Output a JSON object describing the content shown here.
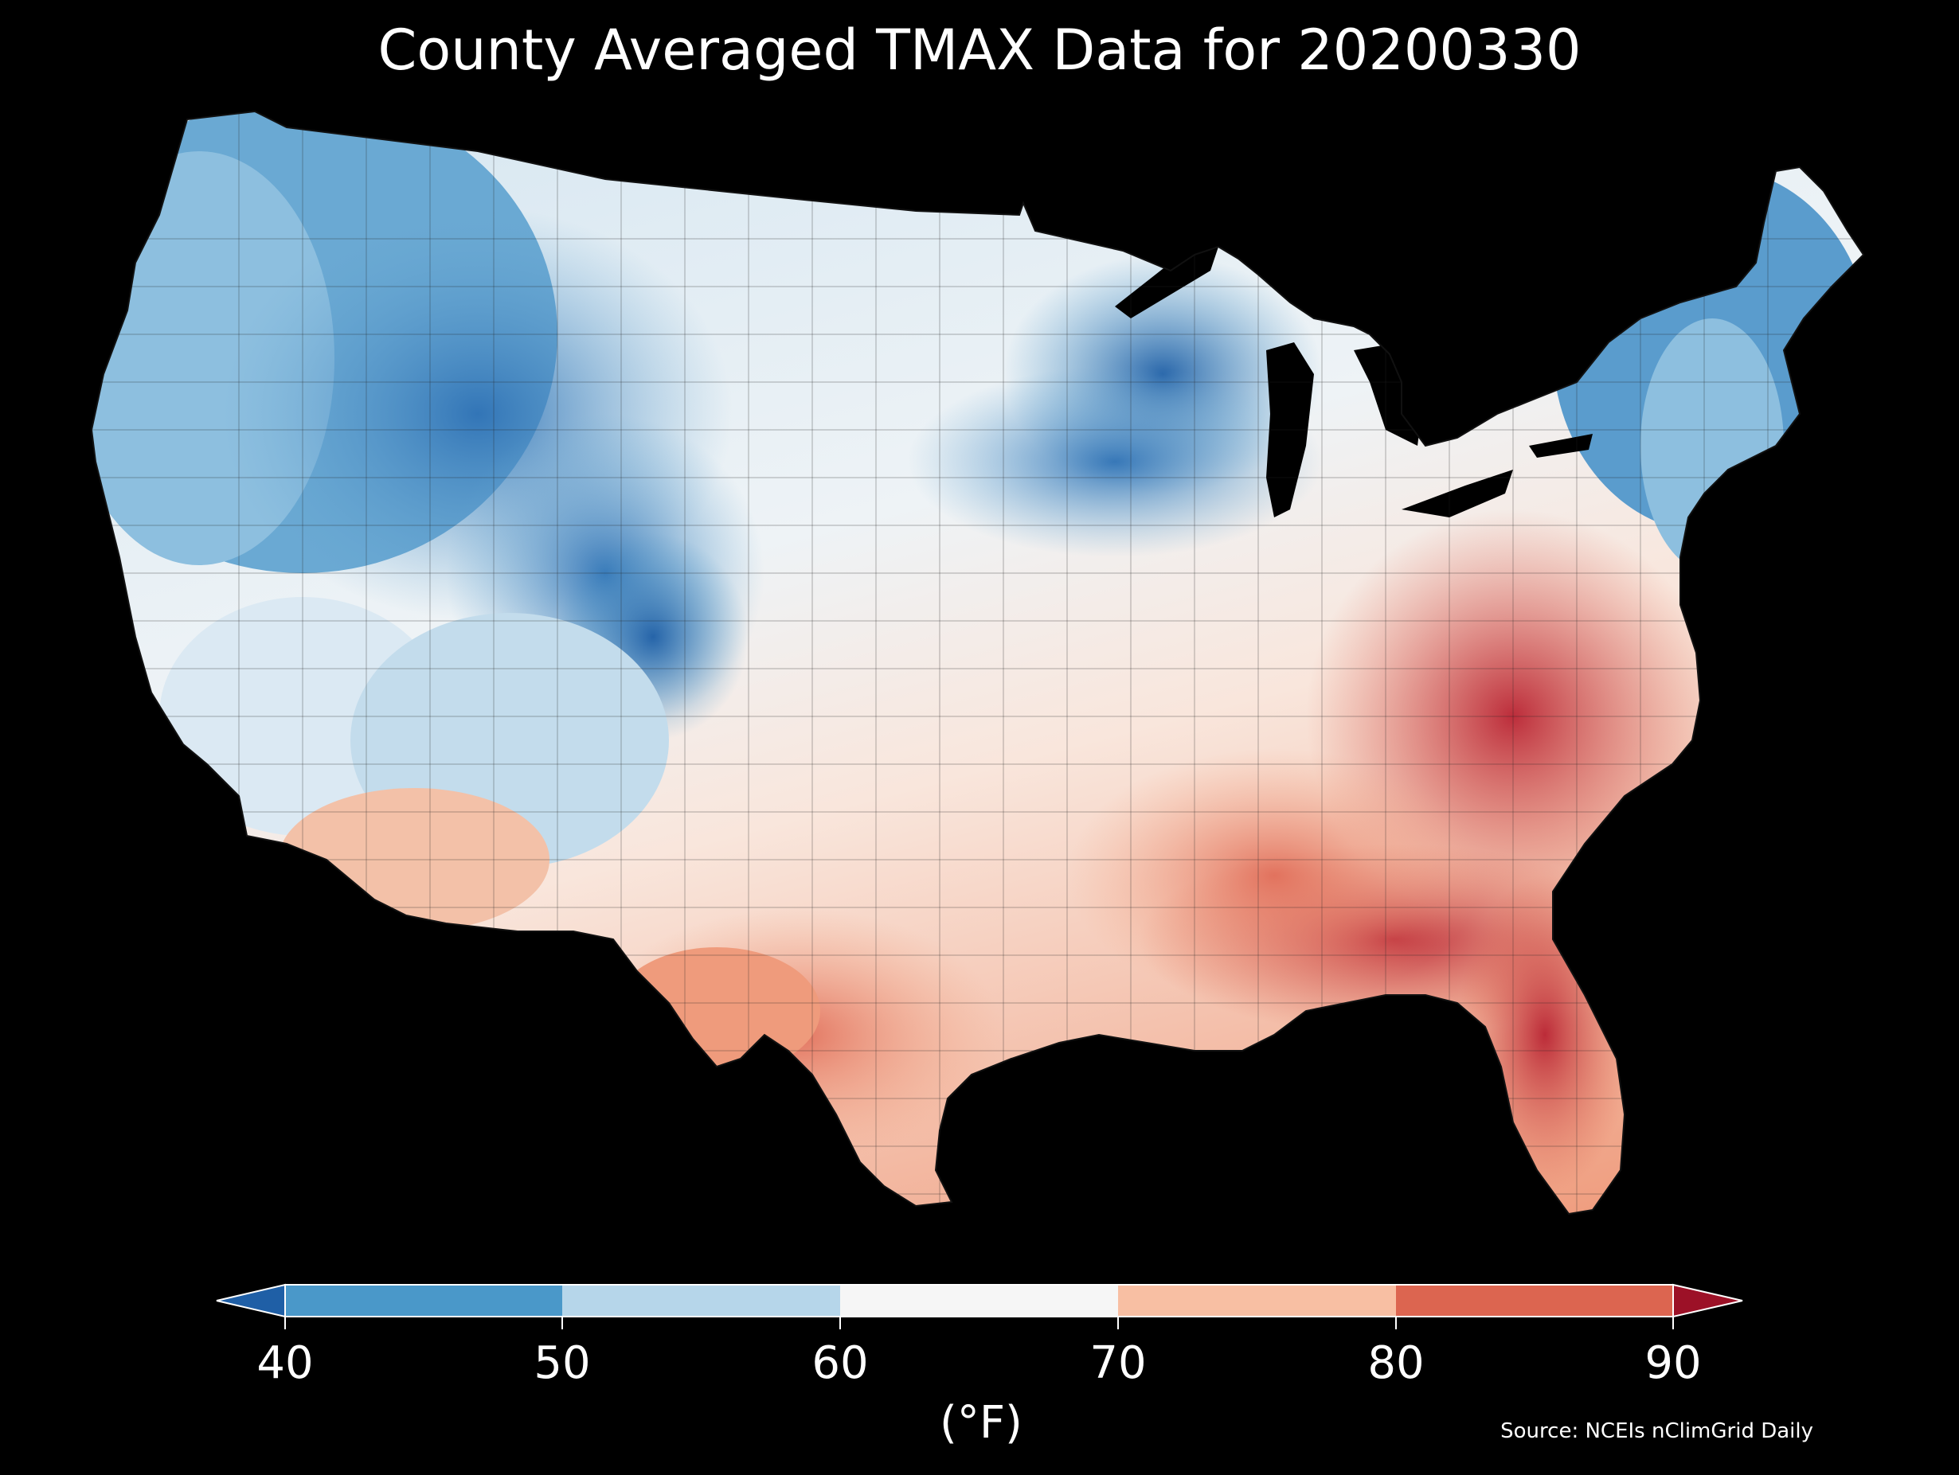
{
  "title": "County Averaged TMAX Data for 20200330",
  "legend": {
    "unit_label": "(°F)",
    "ticks": [
      "40",
      "50",
      "60",
      "70",
      "80",
      "90"
    ],
    "bins": [
      {
        "range": "<40",
        "color": "#1f5fa6"
      },
      {
        "range": "40-50",
        "color": "#4a98c9"
      },
      {
        "range": "50-60",
        "color": "#b6d6ea"
      },
      {
        "range": "60-70",
        "color": "#f6f6f6"
      },
      {
        "range": "70-80",
        "color": "#f8bfa3"
      },
      {
        "range": "80-90",
        "color": "#dc6550"
      },
      {
        "range": ">90",
        "color": "#9c1127"
      }
    ]
  },
  "source": "Source: NCEIs nClimGrid Daily",
  "map_regions": [
    {
      "region": "northern-plains-upper-midwest",
      "color": "#e4eef5"
    },
    {
      "region": "pacific-northwest-northern-rockies",
      "color": "#6aa9d3"
    },
    {
      "region": "central-rockies-colorado",
      "color": "#3a7fbf"
    },
    {
      "region": "great-lakes-wisconsin",
      "color": "#2f72b5"
    },
    {
      "region": "northeast-new-england",
      "color": "#5a9ccd"
    },
    {
      "region": "southwest-arizona",
      "color": "#f5c6ae"
    },
    {
      "region": "texas-gulf",
      "color": "#ea8d6c"
    },
    {
      "region": "southeast-carolinas",
      "color": "#d1504a"
    },
    {
      "region": "florida",
      "color": "#c0303a"
    }
  ]
}
